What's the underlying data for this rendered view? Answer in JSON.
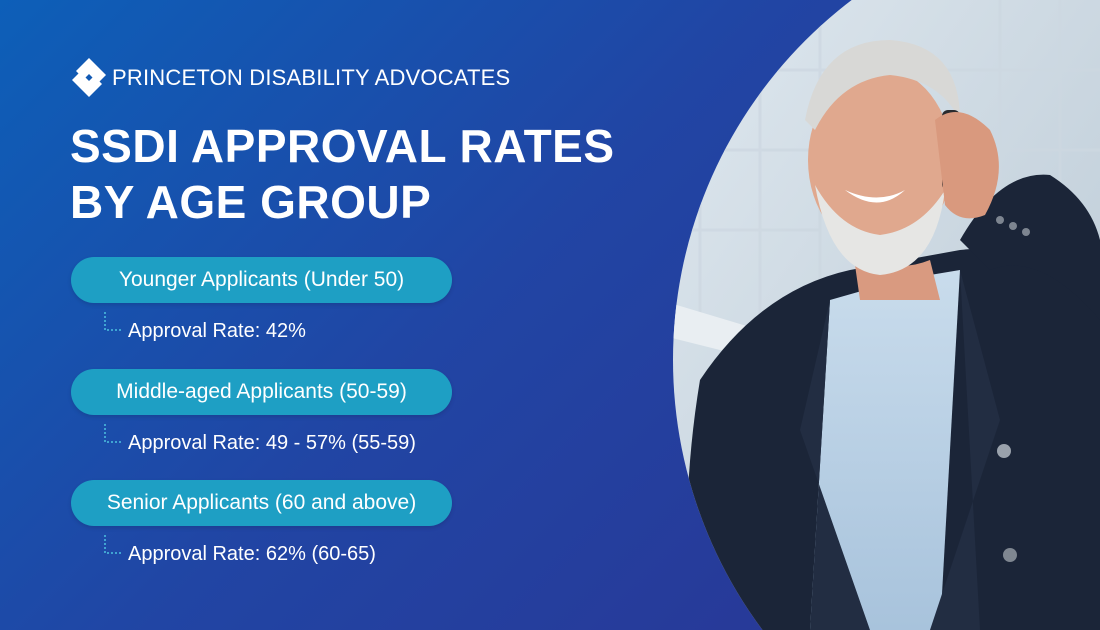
{
  "brand": {
    "name": "PRINCETON DISABILITY ADVOCATES",
    "logo_icon": "diamond-logo-icon"
  },
  "title": {
    "line1": "SSDI APPROVAL RATES",
    "line2": "BY AGE GROUP"
  },
  "groups": [
    {
      "label": "Younger Applicants (Under 50)",
      "rate": "Approval Rate: 42%"
    },
    {
      "label": "Middle-aged Applicants (50-59)",
      "rate": "Approval Rate: 49 - 57% (55-59)"
    },
    {
      "label": "Senior Applicants (60 and above)",
      "rate": "Approval Rate: 62% (60-65)"
    }
  ],
  "colors": {
    "background_start": "#0d5fb8",
    "background_end": "#2b3392",
    "pill": "#1e9fc4",
    "text": "#ffffff"
  }
}
